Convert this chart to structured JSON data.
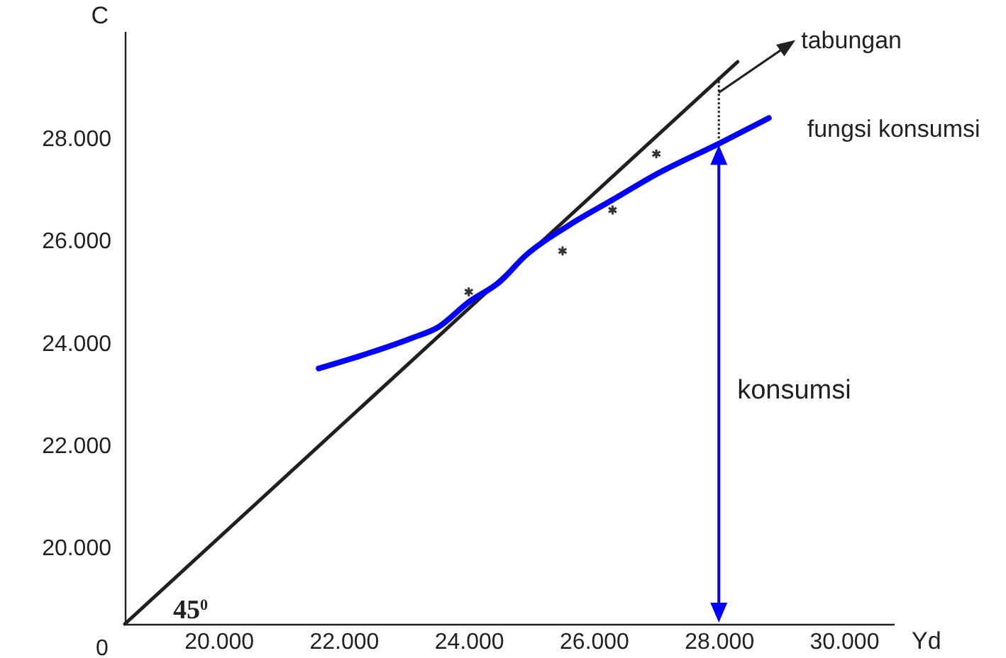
{
  "chart_data": {
    "type": "line",
    "xlabel": "Yd",
    "ylabel": "C",
    "xlim": [
      18500,
      30800
    ],
    "ylim": [
      18500,
      30100
    ],
    "xticks": [
      {
        "value": 20000,
        "label": "20.000"
      },
      {
        "value": 22000,
        "label": "22.000"
      },
      {
        "value": 24000,
        "label": "24.000"
      },
      {
        "value": 26000,
        "label": "26.000"
      },
      {
        "value": 28000,
        "label": "28.000"
      },
      {
        "value": 30000,
        "label": "30.000"
      }
    ],
    "yticks": [
      {
        "value": 20000,
        "label": "20.000"
      },
      {
        "value": 22000,
        "label": "22.000"
      },
      {
        "value": 24000,
        "label": "24.000"
      },
      {
        "value": 26000,
        "label": "26.000"
      },
      {
        "value": 28000,
        "label": "28.000"
      }
    ],
    "series": [
      {
        "color": "#231f20",
        "x": [
          18500,
          28300
        ],
        "values": [
          18500,
          29500
        ]
      },
      {
        "color": "#231f20",
        "line_style": "dotted",
        "x": [
          28000,
          28000
        ],
        "values": [
          28000,
          29200
        ]
      },
      {
        "name": "fungsi konsumsi",
        "color": "#0000ff",
        "x": [
          21600,
          22400,
          23100,
          23500,
          24000,
          24500,
          24900,
          25600,
          26300,
          27000,
          28000,
          28800
        ],
        "values": [
          23500,
          23800,
          24100,
          24300,
          24800,
          25200,
          25700,
          26300,
          26800,
          27300,
          27900,
          28400
        ]
      },
      {
        "type": "scatter",
        "marker": "cross",
        "color": "#333333",
        "x": [
          24000,
          25500,
          26300,
          27000
        ],
        "values": [
          25000,
          25800,
          26600,
          27700
        ]
      }
    ],
    "annotations": [
      {
        "text": "tabungan",
        "x": 28000,
        "y": 28900
      },
      "konsumsi",
      "45$^{0}$",
      "0"
    ]
  }
}
